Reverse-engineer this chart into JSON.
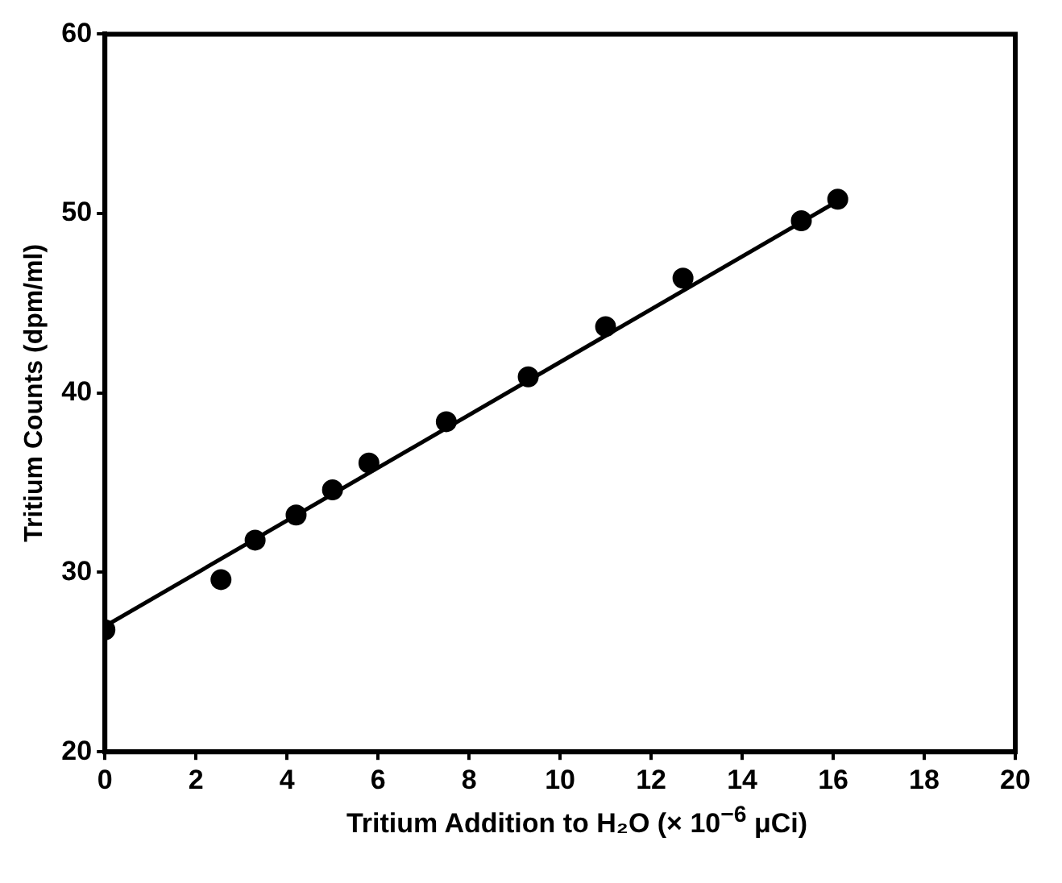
{
  "chart_data": {
    "type": "scatter",
    "xlabel": "Tritium Addition to H₂O (× 10$^{−6}$ μCi)",
    "ylabel": "Tritium Counts (dpm/ml)",
    "xlim": [
      0,
      20
    ],
    "xticks": [
      0,
      2,
      4,
      6,
      8,
      10,
      12,
      14,
      16,
      18,
      20
    ],
    "ylim": [
      20,
      60
    ],
    "yticks": [
      20,
      30,
      40,
      50,
      60
    ],
    "grid": false,
    "legend": false,
    "marker": "circle",
    "series": [
      {
        "type": "scatter",
        "color": "#000000",
        "x": [
          0,
          2.55,
          3.3,
          4.2,
          5.0,
          5.8,
          7.5,
          9.3,
          11.0,
          12.7,
          15.3,
          16.1
        ],
        "values": [
          26.8,
          29.6,
          31.8,
          33.2,
          34.6,
          36.1,
          38.4,
          40.9,
          43.7,
          46.4,
          49.6,
          50.8
        ]
      },
      {
        "type": "line",
        "color": "#000000",
        "marker": "none",
        "line_style": "solid",
        "x": [
          0,
          16.1
        ],
        "values": [
          27.0,
          50.7
        ]
      }
    ]
  }
}
